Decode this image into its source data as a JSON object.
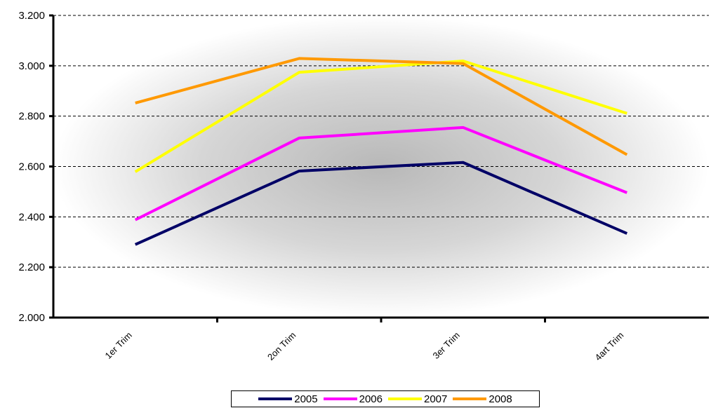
{
  "chart_data": {
    "type": "line",
    "categories": [
      "1er Trim",
      "2on Trim",
      "3er Trim",
      "4art Trim"
    ],
    "series": [
      {
        "name": "2005",
        "color": "#000066",
        "values": [
          2290,
          2582,
          2616,
          2334
        ]
      },
      {
        "name": "2006",
        "color": "#ff00ff",
        "values": [
          2388,
          2713,
          2755,
          2496
        ]
      },
      {
        "name": "2007",
        "color": "#ffff00",
        "values": [
          2579,
          2974,
          3019,
          2811
        ]
      },
      {
        "name": "2008",
        "color": "#ff9900",
        "values": [
          2852,
          3029,
          3009,
          2647
        ]
      }
    ],
    "ylim": [
      2000,
      3200
    ],
    "yticks": [
      {
        "value": 2000,
        "label": "2.000"
      },
      {
        "value": 2200,
        "label": "2.200"
      },
      {
        "value": 2400,
        "label": "2.400"
      },
      {
        "value": 2600,
        "label": "2.600"
      },
      {
        "value": 2800,
        "label": "2.800"
      },
      {
        "value": 3000,
        "label": "3.000"
      },
      {
        "value": 3200,
        "label": "3.200"
      }
    ],
    "grid": "horizontal-dashed",
    "legend_position": "bottom",
    "title": "",
    "xlabel": "",
    "ylabel": ""
  }
}
